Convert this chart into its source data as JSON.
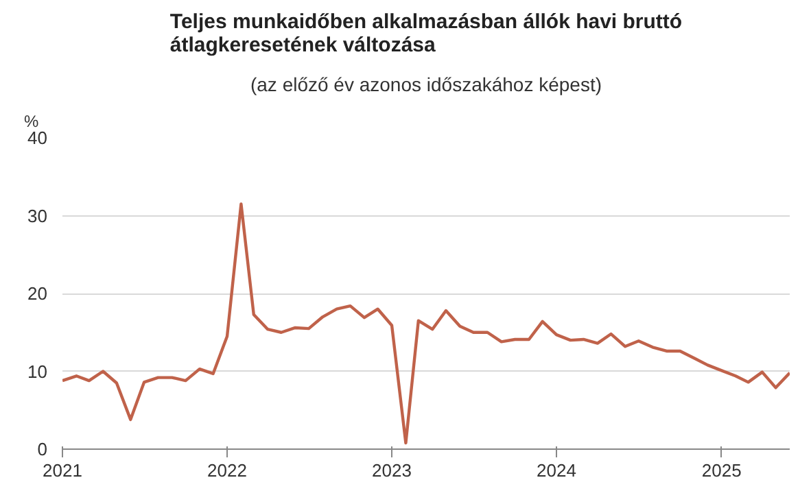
{
  "chart_data": {
    "type": "line",
    "title": "Teljes munkaidőben alkalmazásban állók havi bruttó átlagkeresetének változása",
    "subtitle": "(az előző év azonos időszakához képest)",
    "ylabel": "%",
    "x": [
      "2021-01",
      "2021-02",
      "2021-03",
      "2021-04",
      "2021-05",
      "2021-06",
      "2021-07",
      "2021-08",
      "2021-09",
      "2021-10",
      "2021-11",
      "2021-12",
      "2022-01",
      "2022-02",
      "2022-03",
      "2022-04",
      "2022-05",
      "2022-06",
      "2022-07",
      "2022-08",
      "2022-09",
      "2022-10",
      "2022-11",
      "2022-12",
      "2023-01",
      "2023-02",
      "2023-03",
      "2023-04",
      "2023-05",
      "2023-06",
      "2023-07",
      "2023-08",
      "2023-09",
      "2023-10",
      "2023-11",
      "2023-12",
      "2024-01",
      "2024-02",
      "2024-03",
      "2024-04",
      "2024-05",
      "2024-06",
      "2024-07",
      "2024-08",
      "2024-09",
      "2024-10",
      "2024-11",
      "2024-12",
      "2025-01",
      "2025-02",
      "2025-03",
      "2025-04",
      "2025-05",
      "2025-06"
    ],
    "series": [
      {
        "color": "#c0624a",
        "values": [
          8.8,
          9.4,
          8.8,
          10.0,
          8.5,
          3.8,
          8.6,
          9.2,
          9.2,
          8.8,
          10.3,
          9.7,
          14.5,
          31.5,
          17.3,
          15.4,
          15.0,
          15.6,
          15.5,
          17.0,
          18.0,
          18.4,
          16.9,
          18.0,
          15.9,
          0.8,
          16.5,
          15.4,
          17.8,
          15.8,
          15.0,
          15.0,
          13.8,
          14.1,
          14.1,
          16.4,
          14.7,
          14.0,
          14.1,
          13.6,
          14.8,
          13.2,
          13.9,
          13.1,
          12.6,
          12.6,
          11.7,
          10.8,
          10.1,
          9.4,
          8.6,
          9.9,
          7.9,
          9.8
        ]
      }
    ],
    "xlim": [
      "2021-01",
      "2025-06"
    ],
    "xticks": [
      "2021",
      "2022",
      "2023",
      "2024",
      "2025"
    ],
    "ylim": [
      0,
      40
    ],
    "yticks": [
      0,
      10,
      20,
      30,
      40
    ],
    "grid": "y",
    "marker": "none",
    "line_style": "solid"
  }
}
